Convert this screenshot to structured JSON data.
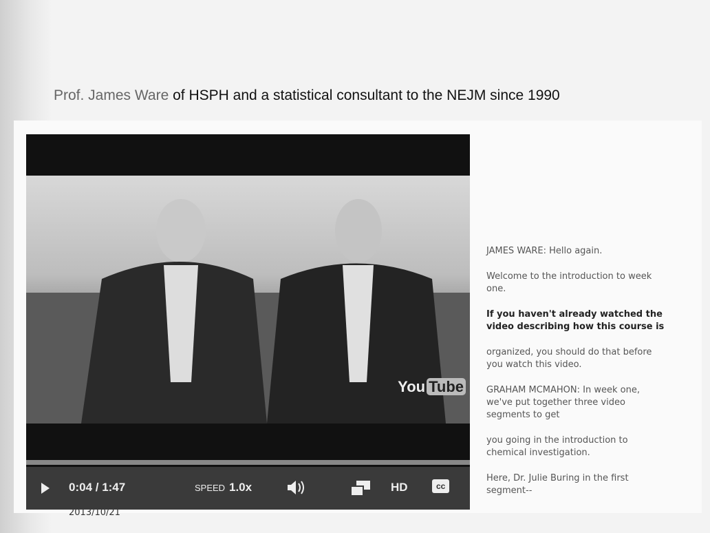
{
  "slide": {
    "title_name": "Prof. James Ware",
    "title_rest": "of HSPH and a statistical consultant to the NEJM since 1990",
    "date": "2013/10/21"
  },
  "player": {
    "logo_you": "You",
    "logo_tube": "Tube",
    "time": "0:04 / 1:47",
    "speed_label": "SPEED",
    "speed_value": "1.0x",
    "hd": "HD",
    "cc": "cc"
  },
  "transcript": [
    {
      "lines": [
        "JAMES WARE: Hello again."
      ],
      "bold": false
    },
    {
      "lines": [
        "Welcome to the introduction to week",
        "one."
      ],
      "bold": false
    },
    {
      "lines": [
        "If you haven't already watched the",
        "video describing how this course is"
      ],
      "bold": true
    },
    {
      "lines": [
        "organized, you should do that before",
        "you watch this video."
      ],
      "bold": false
    },
    {
      "lines": [
        "GRAHAM MCMAHON: In week one,",
        "we've put together three video",
        "segments to get"
      ],
      "bold": false
    },
    {
      "lines": [
        "you going in the introduction to",
        "chemical investigation."
      ],
      "bold": false
    },
    {
      "lines": [
        "Here, Dr. Julie Buring in the first",
        "segment--"
      ],
      "bold": false
    }
  ]
}
